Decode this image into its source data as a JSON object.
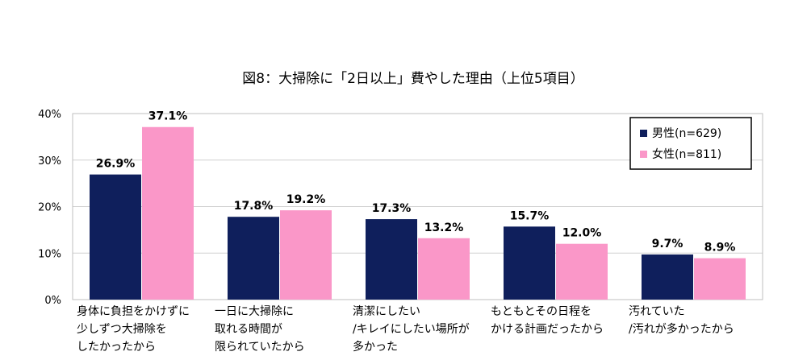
{
  "chart_data": {
    "type": "bar",
    "title": "図8：大掃除に「2日以上」費やした理由（上位5項目）",
    "ylim": [
      0,
      40
    ],
    "yticks": [
      "0%",
      "10%",
      "20%",
      "30%",
      "40%"
    ],
    "categories": [
      [
        "身体に負担をかけずに",
        "少しずつ大掃除を",
        "したかったから"
      ],
      [
        "一日に大掃除に",
        "取れる時間が",
        "限られていたから"
      ],
      [
        "清潔にしたい",
        "/キレイにしたい場所が",
        "多かった"
      ],
      [
        "もともとその日程を",
        "かける計画だったから"
      ],
      [
        "汚れていた",
        "/汚れが多かったから"
      ]
    ],
    "series": [
      {
        "name": "男性(n=629)",
        "color": "#0f1f5c",
        "values": [
          26.9,
          17.8,
          17.3,
          15.7,
          9.7
        ],
        "labels": [
          "26.9%",
          "17.8%",
          "17.3%",
          "15.7%",
          "9.7%"
        ]
      },
      {
        "name": "女性(n=811)",
        "color": "#fa97c8",
        "values": [
          37.1,
          19.2,
          13.2,
          12.0,
          8.9
        ],
        "labels": [
          "37.1%",
          "19.2%",
          "13.2%",
          "12.0%",
          "8.9%"
        ]
      }
    ],
    "legend_position": "top-right",
    "grid": true
  }
}
